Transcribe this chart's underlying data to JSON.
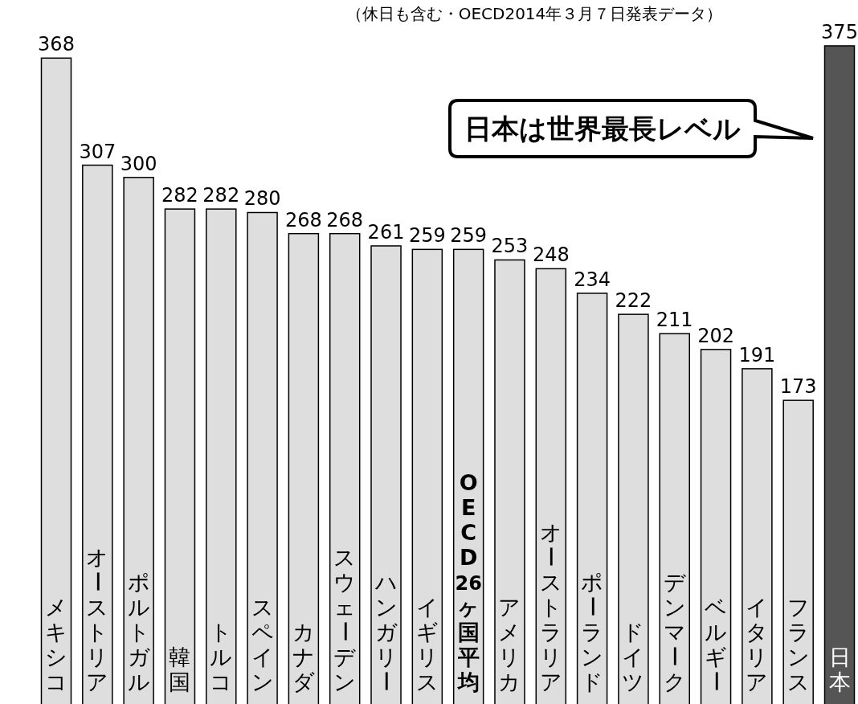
{
  "chart_data": {
    "type": "bar",
    "subtitle": "（休日も含む・OECD2014年３月７日発表データ）",
    "categories": [
      "メキシコ",
      "オーストリア",
      "ポルトガル",
      "韓国",
      "トルコ",
      "スペイン",
      "カナダ",
      "スウェーデン",
      "ハンガリー",
      "イギリス",
      "OECD26ヶ国平均",
      "アメリカ",
      "オーストラリア",
      "ポーランド",
      "ドイツ",
      "デンマーク",
      "ベルギー",
      "イタリア",
      "フランス",
      "日本"
    ],
    "values": [
      368,
      307,
      300,
      282,
      282,
      280,
      268,
      268,
      261,
      259,
      259,
      253,
      248,
      234,
      222,
      211,
      202,
      191,
      173,
      375
    ],
    "colors": [
      "#dedede",
      "#dedede",
      "#dedede",
      "#dedede",
      "#dedede",
      "#dedede",
      "#dedede",
      "#dedede",
      "#dedede",
      "#dedede",
      "#dedede",
      "#dedede",
      "#dedede",
      "#dedede",
      "#dedede",
      "#dedede",
      "#dedede",
      "#dedede",
      "#dedede",
      "#555555"
    ],
    "data_labels": true,
    "annotations": [
      "日本は世界最長レベル"
    ]
  }
}
